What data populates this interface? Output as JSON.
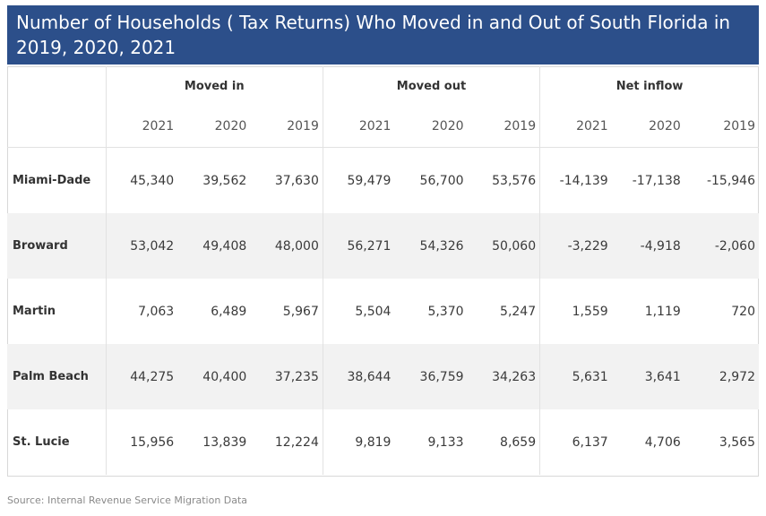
{
  "title": "Number of Households ( Tax Returns) Who Moved in and Out of South Florida in 2019, 2020, 2021",
  "source": "Source: Internal Revenue Service Migration Data",
  "colors": {
    "header_bg": "#2c4f8a",
    "header_text": "#ffffff",
    "row_shade": "#f2f2f2"
  },
  "chart_data": {
    "type": "table",
    "title": "Number of Households ( Tax Returns) Who Moved in and Out of South Florida in 2019, 2020, 2021",
    "groups": [
      "Moved in",
      "Moved out",
      "Net inflow"
    ],
    "years": [
      "2021",
      "2020",
      "2019"
    ],
    "rows": [
      {
        "county": "Miami-Dade",
        "values": [
          "45,340",
          "39,562",
          "37,630",
          "59,479",
          "56,700",
          "53,576",
          "-14,139",
          "-17,138",
          "-15,946"
        ]
      },
      {
        "county": "Broward",
        "values": [
          "53,042",
          "49,408",
          "48,000",
          "56,271",
          "54,326",
          "50,060",
          "-3,229",
          "-4,918",
          "-2,060"
        ]
      },
      {
        "county": "Martin",
        "values": [
          "7,063",
          "6,489",
          "5,967",
          "5,504",
          "5,370",
          "5,247",
          "1,559",
          "1,119",
          "720"
        ]
      },
      {
        "county": "Palm Beach",
        "values": [
          "44,275",
          "40,400",
          "37,235",
          "38,644",
          "36,759",
          "34,263",
          "5,631",
          "3,641",
          "2,972"
        ]
      },
      {
        "county": "St. Lucie",
        "values": [
          "15,956",
          "13,839",
          "12,224",
          "9,819",
          "9,133",
          "8,659",
          "6,137",
          "4,706",
          "3,565"
        ]
      }
    ]
  }
}
